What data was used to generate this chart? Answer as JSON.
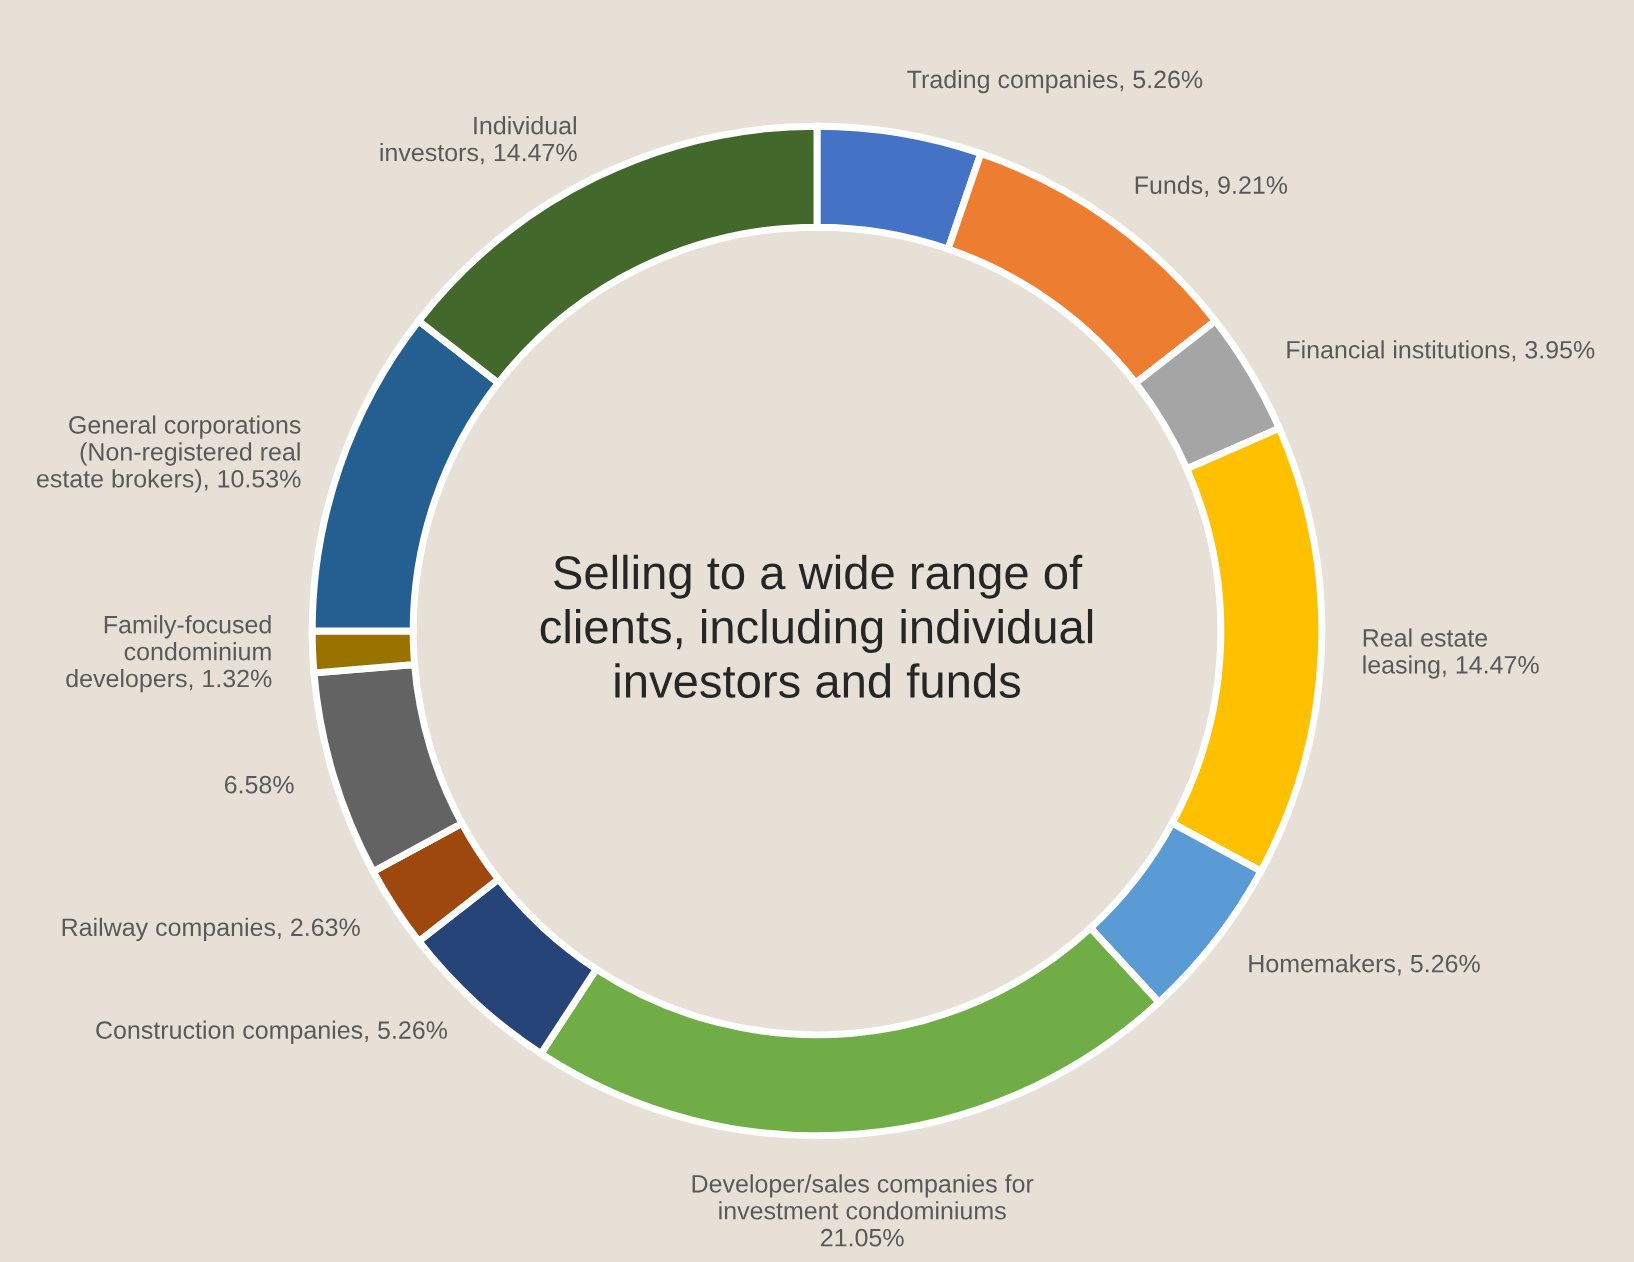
{
  "chart_data": {
    "type": "donut",
    "categories": [
      "Trading companies",
      "Funds",
      "Financial institutions",
      "Real estate\nleasing",
      "Homemakers",
      "Developer/sales companies for\ninvestment condominiums",
      "Construction companies",
      "Railway companies",
      null,
      "Family-focused\ncondominium\ndevelopers",
      "General corporations\n(Non-registered real\nestate brokers)",
      "Individual\ninvestors"
    ],
    "values": [
      5.26,
      9.21,
      3.95,
      14.47,
      5.26,
      21.05,
      5.26,
      2.63,
      6.58,
      1.32,
      10.53,
      14.47
    ],
    "value_labels": [
      "5.26%",
      "9.21%",
      "3.95%",
      "14.47%",
      "5.26%",
      "21.05%",
      "5.26%",
      "2.63%",
      "6.58%",
      "1.32%",
      "10.53%",
      "14.47%"
    ],
    "colors": [
      "#4472c4",
      "#ed7d31",
      "#a5a5a5",
      "#ffc000",
      "#5b9bd5",
      "#70ad47",
      "#264478",
      "#9e480e",
      "#636363",
      "#997300",
      "#255e91",
      "#43682b"
    ],
    "annotations": [
      "Selling to a wide range of\nclients, including individual\ninvestors and funds"
    ]
  }
}
